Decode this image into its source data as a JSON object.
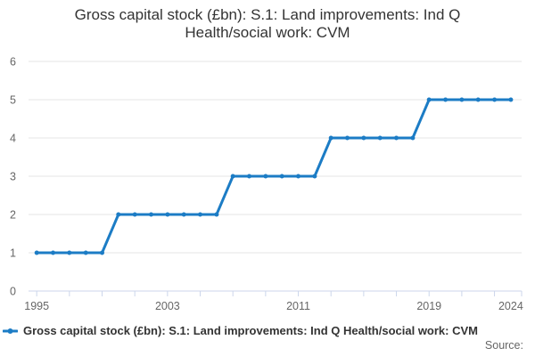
{
  "chart": {
    "title_lines": [
      "Gross capital stock (£bn): S.1: Land improvements: Ind Q",
      "Health/social work: CVM"
    ],
    "legend_label": "Gross capital stock (£bn): S.1: Land improvements: Ind Q Health/social work: CVM",
    "source_label": "Source:"
  },
  "chart_data": {
    "type": "line",
    "title": "Gross capital stock (£bn): S.1: Land improvements: Ind Q Health/social work: CVM",
    "x": [
      1995,
      1996,
      1997,
      1998,
      1999,
      2000,
      2001,
      2002,
      2003,
      2004,
      2005,
      2006,
      2007,
      2008,
      2009,
      2010,
      2011,
      2012,
      2013,
      2014,
      2015,
      2016,
      2017,
      2018,
      2019,
      2020,
      2021,
      2022,
      2023,
      2024
    ],
    "values": [
      1,
      1,
      1,
      1,
      1,
      2,
      2,
      2,
      2,
      2,
      2,
      2,
      3,
      3,
      3,
      3,
      3,
      3,
      4,
      4,
      4,
      4,
      4,
      4,
      5,
      5,
      5,
      5,
      5,
      5
    ],
    "xlabel": "",
    "ylabel": "",
    "xlim": [
      1994.5,
      2024.66
    ],
    "ylim": [
      0,
      6
    ],
    "y_ticks": [
      0,
      1,
      2,
      3,
      4,
      5,
      6
    ],
    "x_labeled_ticks": [
      1995,
      2003,
      2011,
      2019,
      2024
    ],
    "x_tick_marks": [
      1995,
      1997,
      1999,
      2001,
      2003,
      2005,
      2007,
      2009,
      2011,
      2013,
      2015,
      2017,
      2019,
      2021,
      2023
    ],
    "x_axis_edge_tick": true,
    "grid": "horizontal",
    "legend_position": "bottom-left",
    "marker": "circle",
    "colors": {
      "line": "#1c7cc5",
      "grid": "#e6e6e6",
      "axis_line": "#ccd6eb",
      "tick_label": "#666666",
      "title": "#333333",
      "source": "#666666"
    }
  }
}
